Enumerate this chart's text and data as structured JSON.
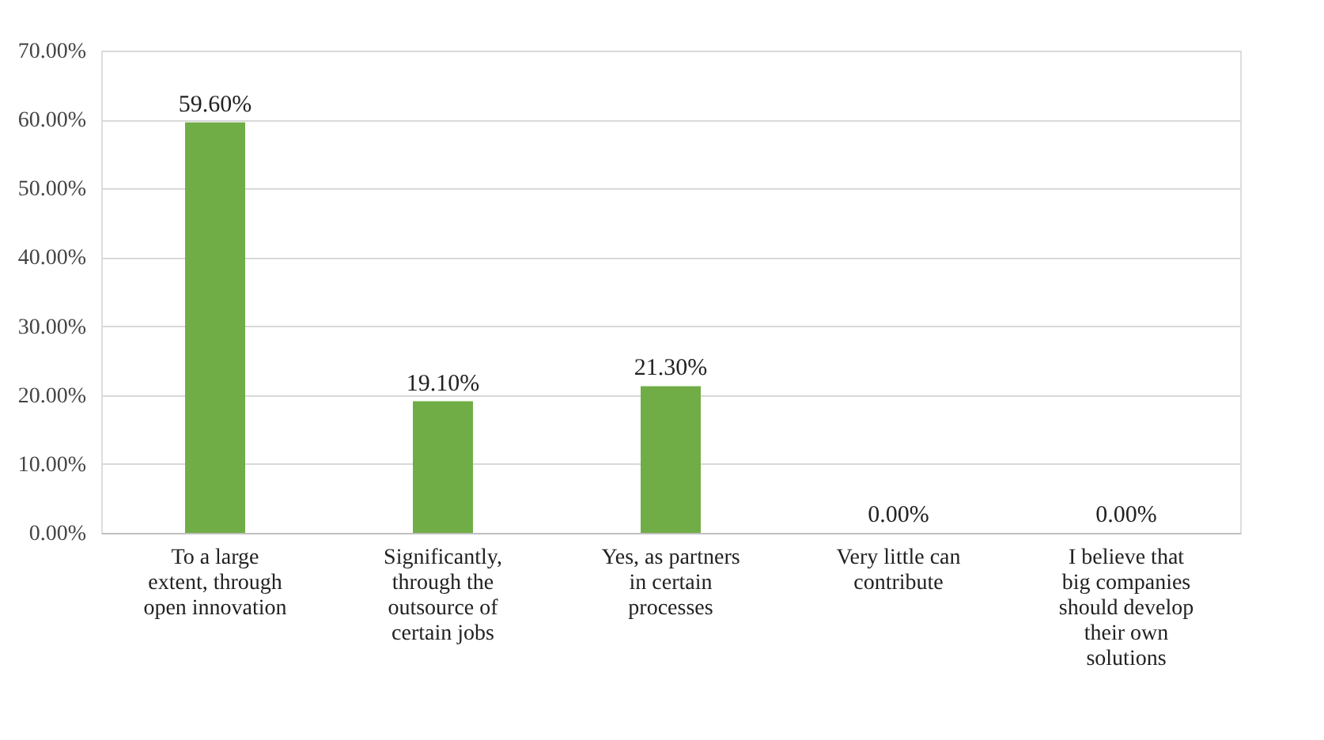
{
  "chart_data": {
    "type": "bar",
    "categories": [
      "To a large extent, through open innovation",
      "Significantly, through the outsource of certain jobs",
      "Yes, as partners in certain processes",
      "Very little can contribute",
      "I believe that big companies should develop their own solutions"
    ],
    "values": [
      59.6,
      19.1,
      21.3,
      0,
      0
    ],
    "value_labels": [
      "59.60%",
      "19.10%",
      "21.30%",
      "0.00%",
      "0.00%"
    ],
    "color": "#70ad47",
    "ylim": [
      0,
      70
    ],
    "yticks": [
      {
        "value": 0,
        "label": "0.00%"
      },
      {
        "value": 10,
        "label": "10.00%"
      },
      {
        "value": 20,
        "label": "20.00%"
      },
      {
        "value": 30,
        "label": "30.00%"
      },
      {
        "value": 40,
        "label": "40.00%"
      },
      {
        "value": 50,
        "label": "50.00%"
      },
      {
        "value": 60,
        "label": "60.00%"
      },
      {
        "value": 70,
        "label": "70.00%"
      }
    ],
    "grid": "y"
  }
}
